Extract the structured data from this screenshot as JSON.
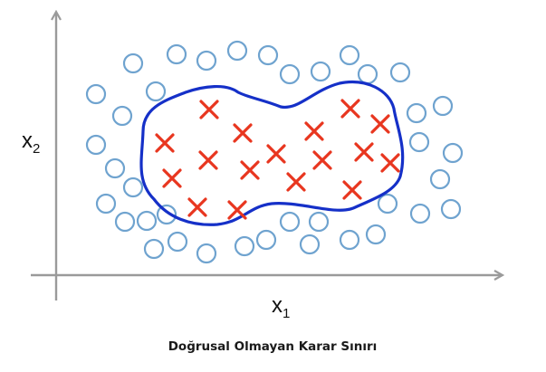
{
  "diagram": {
    "caption": "Doğrusal Olmayan Karar Sınırı",
    "x_axis_label": {
      "base": "x",
      "sub": "1"
    },
    "y_axis_label": {
      "base": "x",
      "sub": "2"
    },
    "colors": {
      "axis": "#9a9a9a",
      "circle": "#6fa3cf",
      "cross": "#e8361f",
      "boundary": "#1530c8"
    },
    "classes": [
      {
        "marker": "circle",
        "location": "outside boundary"
      },
      {
        "marker": "cross",
        "location": "inside boundary"
      }
    ]
  }
}
